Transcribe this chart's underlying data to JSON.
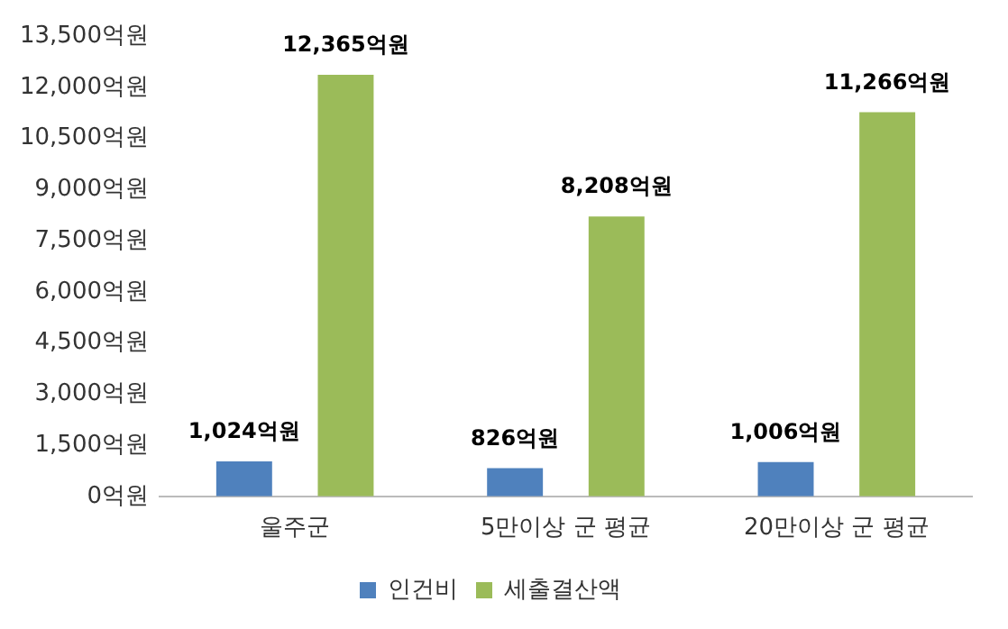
{
  "chart_data": {
    "type": "bar",
    "categories": [
      "울주군",
      "5만이상 군 평균",
      "20만이상 군 평균"
    ],
    "series": [
      {
        "name": "인건비",
        "color": "#4f81bd",
        "values": [
          1024,
          826,
          1006
        ],
        "value_labels": [
          "1,024억원",
          "826억원",
          "1,006억원"
        ]
      },
      {
        "name": "세출결산액",
        "color": "#9bbb59",
        "values": [
          12365,
          8208,
          11266
        ],
        "value_labels": [
          "12,365억원",
          "8,208억원",
          "11,266억원"
        ]
      }
    ],
    "ylim": [
      0,
      13500
    ],
    "yticks": [
      {
        "value": 0,
        "label": "0억원"
      },
      {
        "value": 1500,
        "label": "1,500억원"
      },
      {
        "value": 3000,
        "label": "3,000억원"
      },
      {
        "value": 4500,
        "label": "4,500억원"
      },
      {
        "value": 6000,
        "label": "6,000억원"
      },
      {
        "value": 7500,
        "label": "7,500억원"
      },
      {
        "value": 9000,
        "label": "9,000억원"
      },
      {
        "value": 10500,
        "label": "10,500억원"
      },
      {
        "value": 12000,
        "label": "12,000억원"
      },
      {
        "value": 13500,
        "label": "13,500억원"
      }
    ],
    "grid": false,
    "legend": "bottom"
  }
}
